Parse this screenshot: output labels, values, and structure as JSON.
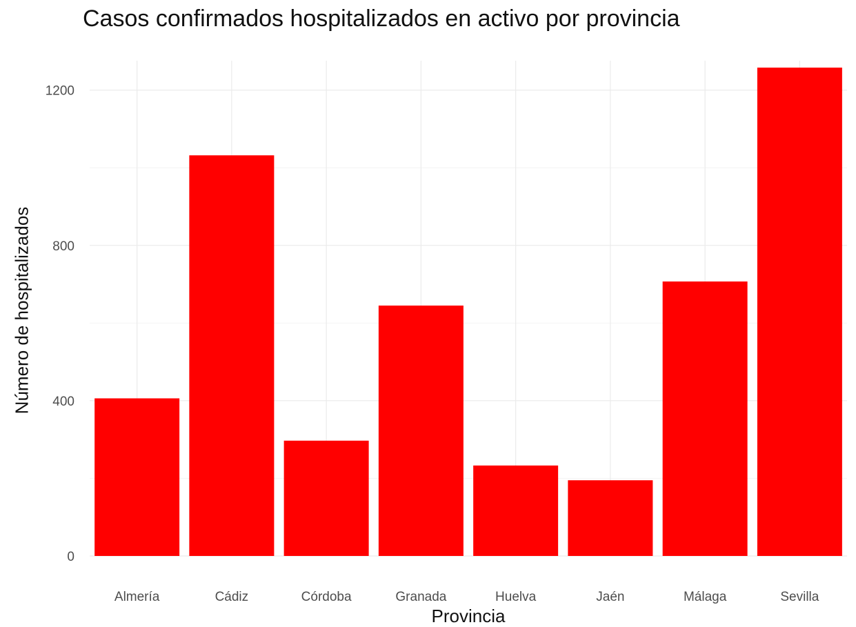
{
  "chart_data": {
    "type": "bar",
    "title": "Casos confirmados hospitalizados en activo por provincia",
    "xlabel": "Provincia",
    "ylabel": "Número de hospitalizados",
    "categories": [
      "Almería",
      "Cádiz",
      "Córdoba",
      "Granada",
      "Huelva",
      "Jaén",
      "Málaga",
      "Sevilla"
    ],
    "values": [
      406,
      1032,
      297,
      645,
      233,
      195,
      707,
      1258
    ],
    "ylim": [
      0,
      1258
    ],
    "yticks": [
      0,
      400,
      800,
      1200
    ],
    "ytick_labels": [
      "0",
      "400",
      "800",
      "1200"
    ],
    "grid": true,
    "legend": "none",
    "bar_color": "#ff0000"
  }
}
